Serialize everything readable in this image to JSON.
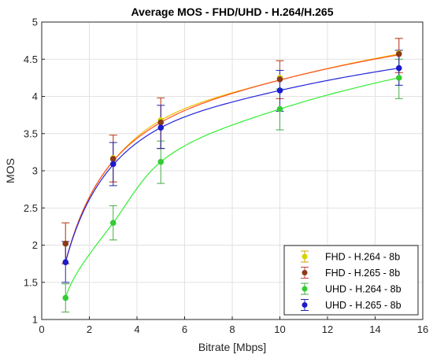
{
  "chart_data": {
    "type": "line",
    "title": "Average MOS - FHD/UHD - H.264/H.265",
    "xlabel": "Bitrate [Mbps]",
    "ylabel": "MOS",
    "xlim": [
      0,
      16
    ],
    "ylim": [
      1,
      5
    ],
    "xticks": [
      "0",
      "2",
      "4",
      "6",
      "8",
      "10",
      "12",
      "14",
      "16"
    ],
    "yticks": [
      "1",
      "1.5",
      "2",
      "2.5",
      "3",
      "3.5",
      "4",
      "4.5",
      "5"
    ],
    "grid": true,
    "legend_position": "bottom-right",
    "x": [
      1,
      3,
      5,
      10,
      15
    ],
    "series": [
      {
        "name": "FHD - H.264 - 8b",
        "marker_color": "#d4d400",
        "line_color": "#f0c000",
        "errorbar_color": "#d4a000",
        "values": [
          2.02,
          3.17,
          3.68,
          4.25,
          4.58
        ],
        "error_low": [
          1.75,
          2.85,
          3.3,
          3.97,
          4.32
        ],
        "error_high": [
          2.3,
          3.48,
          3.98,
          4.48,
          4.78
        ],
        "fit": [
          1.77,
          3.13,
          3.68,
          4.22,
          4.57
        ]
      },
      {
        "name": "FHD - H.265 - 8b",
        "marker_color": "#8b3a1a",
        "line_color": "#ff5020",
        "errorbar_color": "#c04040",
        "values": [
          2.02,
          3.16,
          3.65,
          4.23,
          4.57
        ],
        "error_low": [
          1.75,
          2.85,
          3.3,
          3.97,
          4.32
        ],
        "error_high": [
          2.3,
          3.48,
          3.98,
          4.48,
          4.78
        ],
        "fit": [
          1.77,
          3.13,
          3.65,
          4.22,
          4.56
        ]
      },
      {
        "name": "UHD - H.264 - 8b",
        "marker_color": "#33cc33",
        "line_color": "#33ee33",
        "errorbar_color": "#44aa44",
        "values": [
          1.29,
          2.3,
          3.12,
          3.83,
          4.25
        ],
        "error_low": [
          1.1,
          2.07,
          2.83,
          3.55,
          3.97
        ],
        "error_high": [
          1.48,
          2.53,
          3.4,
          4.1,
          4.5
        ],
        "fit": [
          1.3,
          2.3,
          3.12,
          3.83,
          4.25
        ]
      },
      {
        "name": "UHD - H.265 - 8b",
        "marker_color": "#1a1acc",
        "line_color": "#2222dd",
        "errorbar_color": "#2222aa",
        "values": [
          1.77,
          3.09,
          3.58,
          4.08,
          4.38
        ],
        "error_low": [
          1.5,
          2.8,
          3.3,
          3.8,
          4.15
        ],
        "error_high": [
          2.05,
          3.38,
          3.88,
          4.35,
          4.62
        ],
        "fit": [
          1.77,
          3.08,
          3.58,
          4.08,
          4.38
        ]
      }
    ]
  }
}
